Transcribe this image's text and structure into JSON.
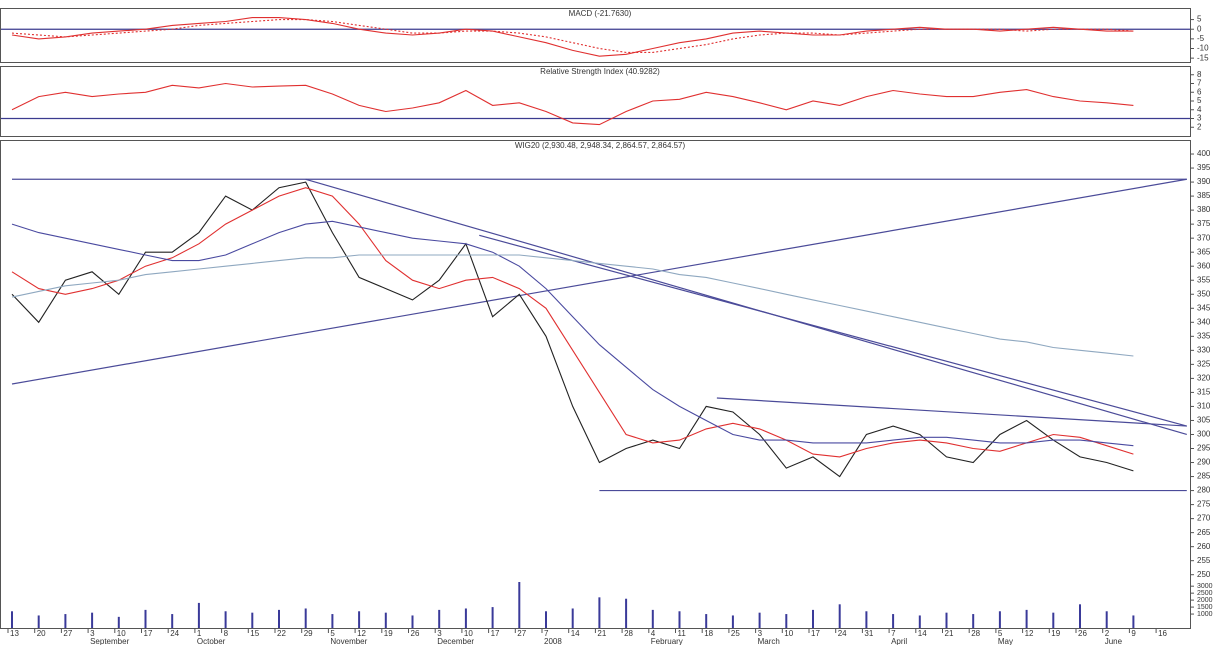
{
  "chart_data": [
    {
      "type": "line",
      "title": "MACD (-21.7630)",
      "ylim": [
        -17,
        11
      ],
      "yticks": [
        5,
        0,
        -5,
        -10,
        -15
      ],
      "hlines": [
        0
      ],
      "series": [
        {
          "name": "MACD",
          "color": "#e03030",
          "values": [
            -3,
            -5,
            -4,
            -2,
            -1,
            0,
            2,
            3,
            4,
            6,
            6,
            5,
            3,
            0,
            -2,
            -3,
            -2,
            0,
            -1,
            -4,
            -7,
            -11,
            -14,
            -13,
            -10,
            -7,
            -5,
            -2,
            -1,
            -2,
            -3,
            -3,
            -1,
            0,
            1,
            0,
            0,
            -1,
            0,
            1,
            0,
            -1,
            -1,
            null
          ]
        },
        {
          "name": "Signal",
          "color": "#e03030",
          "dashed": true,
          "values": [
            -2,
            -3,
            -4,
            -3,
            -2,
            -1,
            0,
            2,
            3,
            4,
            5,
            5,
            4,
            2,
            0,
            -2,
            -2,
            -1,
            -1,
            -2,
            -4,
            -7,
            -10,
            -12,
            -12,
            -10,
            -8,
            -5,
            -3,
            -2,
            -2,
            -3,
            -2,
            -1,
            0,
            0,
            0,
            0,
            -1,
            0,
            0,
            0,
            -1,
            null
          ]
        }
      ]
    },
    {
      "type": "line",
      "title": "Relative Strength Index (40.9282)",
      "ylim": [
        1,
        9
      ],
      "yticks": [
        2,
        3,
        4,
        5,
        6,
        7,
        8
      ],
      "hlines": [
        3
      ],
      "series": [
        {
          "name": "RSI",
          "color": "#e03030",
          "values": [
            4,
            5.5,
            6,
            5.5,
            5.8,
            6,
            6.8,
            6.5,
            7,
            6.6,
            6.7,
            6.8,
            5.8,
            4.5,
            3.8,
            4.2,
            4.8,
            6.2,
            4.5,
            4.8,
            3.8,
            2.5,
            2.3,
            3.8,
            5,
            5.2,
            6,
            5.5,
            4.8,
            4,
            5,
            4.5,
            5.5,
            6.2,
            5.8,
            5.5,
            5.5,
            6,
            6.3,
            5.5,
            5,
            4.8,
            4.5,
            null
          ]
        }
      ]
    },
    {
      "type": "line",
      "title": "WIG20 (2,930.48, 2,948.34, 2,864.57, 2,864.57)",
      "ylim": [
        231,
        405
      ],
      "yticks": [
        400,
        395,
        390,
        385,
        380,
        375,
        370,
        365,
        360,
        355,
        350,
        345,
        340,
        335,
        330,
        325,
        320,
        315,
        310,
        305,
        300,
        295,
        290,
        285,
        280,
        275,
        270,
        265,
        260,
        255,
        250
      ],
      "series": [
        {
          "name": "WIG20",
          "color": "#222222",
          "values": [
            350,
            340,
            355,
            358,
            350,
            365,
            365,
            372,
            385,
            380,
            388,
            390,
            372,
            356,
            352,
            348,
            355,
            368,
            342,
            350,
            335,
            310,
            290,
            295,
            298,
            295,
            310,
            308,
            300,
            288,
            292,
            285,
            300,
            303,
            300,
            292,
            290,
            300,
            305,
            298,
            292,
            290,
            287,
            null
          ]
        },
        {
          "name": "MA short",
          "color": "#e03030",
          "values": [
            358,
            352,
            350,
            352,
            355,
            360,
            363,
            368,
            375,
            380,
            385,
            388,
            385,
            375,
            362,
            355,
            352,
            355,
            356,
            352,
            345,
            330,
            315,
            300,
            297,
            298,
            302,
            304,
            302,
            298,
            293,
            292,
            295,
            297,
            298,
            297,
            295,
            294,
            297,
            300,
            299,
            296,
            293,
            null
          ]
        },
        {
          "name": "MA medium",
          "color": "#4a4aa0",
          "values": [
            375,
            372,
            370,
            368,
            366,
            364,
            362,
            362,
            364,
            368,
            372,
            375,
            376,
            374,
            372,
            370,
            369,
            368,
            365,
            360,
            352,
            342,
            332,
            324,
            316,
            310,
            305,
            300,
            298,
            298,
            297,
            297,
            297,
            298,
            299,
            299,
            298,
            297,
            297,
            298,
            298,
            297,
            296,
            null
          ]
        },
        {
          "name": "MA long",
          "color": "#8fa8c0",
          "values": [
            349,
            351,
            353,
            354,
            355,
            357,
            358,
            359,
            360,
            361,
            362,
            363,
            363,
            364,
            364,
            364,
            364,
            364,
            364,
            364,
            363,
            362,
            361,
            360,
            359,
            357,
            356,
            354,
            352,
            350,
            348,
            346,
            344,
            342,
            340,
            338,
            336,
            334,
            333,
            331,
            330,
            329,
            328,
            null
          ]
        }
      ],
      "trendlines": [
        {
          "x": [
            0,
            44
          ],
          "y": [
            391,
            391
          ]
        },
        {
          "x": [
            0,
            44
          ],
          "y": [
            318,
            391
          ]
        },
        {
          "x": [
            11,
            44
          ],
          "y": [
            391,
            300
          ]
        },
        {
          "x": [
            17.5,
            44
          ],
          "y": [
            371,
            303
          ]
        },
        {
          "x": [
            26.4,
            44
          ],
          "y": [
            313,
            303
          ]
        },
        {
          "x": [
            22,
            44
          ],
          "y": [
            280,
            280
          ]
        }
      ]
    },
    {
      "type": "bar",
      "ylim": [
        0,
        3300
      ],
      "yticks": [
        1000,
        1500,
        2000,
        2500,
        3000
      ],
      "color": "#3a3a99",
      "categories": [
        "13",
        "20",
        "27",
        "3",
        "10",
        "17",
        "24",
        "1",
        "8",
        "15",
        "22",
        "29",
        "5",
        "12",
        "19",
        "26",
        "3",
        "10",
        "17",
        "27",
        "7",
        "14",
        "21",
        "28",
        "4",
        "11",
        "18",
        "25",
        "3",
        "10",
        "17",
        "24",
        "31",
        "7",
        "14",
        "21",
        "28",
        "5",
        "12",
        "19",
        "26",
        "2",
        "9",
        "16"
      ],
      "months": [
        null,
        null,
        null,
        "September",
        null,
        null,
        null,
        "October",
        null,
        null,
        null,
        null,
        "November",
        null,
        null,
        null,
        "December",
        null,
        null,
        null,
        "2008",
        null,
        null,
        null,
        "February",
        null,
        null,
        null,
        "March",
        null,
        null,
        null,
        null,
        "April",
        null,
        null,
        null,
        "May",
        null,
        null,
        null,
        "June",
        null,
        null
      ],
      "values": [
        1200,
        900,
        1000,
        1100,
        800,
        1300,
        1000,
        1800,
        1200,
        1100,
        1300,
        1400,
        1000,
        1200,
        1100,
        900,
        1300,
        1400,
        1500,
        3300,
        1200,
        1400,
        2200,
        2100,
        1300,
        1200,
        1000,
        900,
        1100,
        1000,
        1300,
        1700,
        1200,
        1000,
        900,
        1100,
        1000,
        1200,
        1300,
        1100,
        1700,
        1200,
        900,
        null
      ]
    }
  ]
}
